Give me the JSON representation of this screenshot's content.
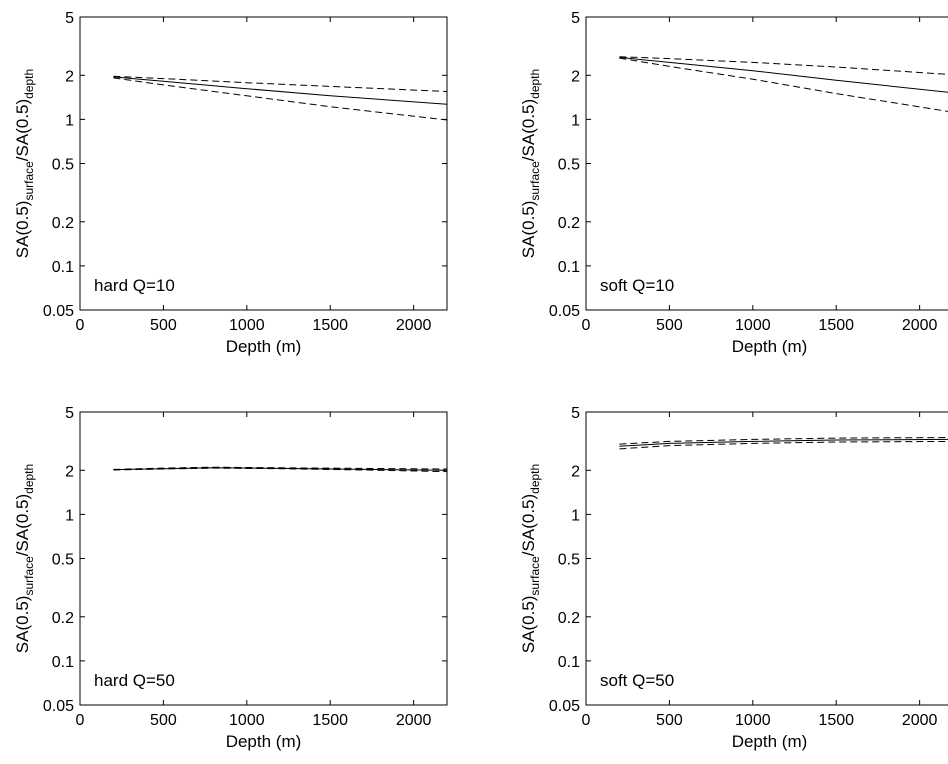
{
  "chart_data": [
    {
      "type": "line",
      "panel_label": "hard Q=10",
      "xlabel": "Depth (m)",
      "ylabel": {
        "main": "SA(0.5)",
        "surface": "surface",
        "sep": "/SA(0.5)",
        "depth": "depth"
      },
      "xlim": [
        0,
        2200
      ],
      "ylim": [
        0.05,
        5
      ],
      "yscale": "log",
      "xticks": [
        0,
        500,
        1000,
        1500,
        2000
      ],
      "xtick_labels": [
        "0",
        "500",
        "1000",
        "1500",
        "2000"
      ],
      "yticks": [
        0.05,
        0.1,
        0.2,
        0.5,
        1,
        2,
        5
      ],
      "ytick_labels": [
        "0.05",
        "0.1",
        "0.2",
        "0.5",
        "1",
        "2",
        "5"
      ],
      "grid": false,
      "series": [
        {
          "style": "solid",
          "x": [
            200,
            500,
            1000,
            1500,
            2200
          ],
          "y": [
            1.95,
            1.82,
            1.62,
            1.45,
            1.27
          ]
        },
        {
          "style": "dashed",
          "x": [
            200,
            500,
            1000,
            1500,
            2200
          ],
          "y": [
            1.97,
            1.9,
            1.78,
            1.68,
            1.55
          ]
        },
        {
          "style": "dashed",
          "x": [
            200,
            500,
            1000,
            1500,
            2200
          ],
          "y": [
            1.92,
            1.72,
            1.45,
            1.22,
            0.99
          ]
        }
      ]
    },
    {
      "type": "line",
      "panel_label": "soft Q=10",
      "xlabel": "Depth (m)",
      "ylabel": {
        "main": "SA(0.5)",
        "surface": "surface",
        "sep": "/SA(0.5)",
        "depth": "depth"
      },
      "xlim": [
        0,
        2200
      ],
      "ylim": [
        0.05,
        5
      ],
      "yscale": "log",
      "xticks": [
        0,
        500,
        1000,
        1500,
        2000
      ],
      "xtick_labels": [
        "0",
        "500",
        "1000",
        "1500",
        "2000"
      ],
      "yticks": [
        0.05,
        0.1,
        0.2,
        0.5,
        1,
        2,
        5
      ],
      "ytick_labels": [
        "0.05",
        "0.1",
        "0.2",
        "0.5",
        "1",
        "2",
        "5"
      ],
      "grid": false,
      "series": [
        {
          "style": "solid",
          "x": [
            200,
            500,
            1000,
            1500,
            2200
          ],
          "y": [
            2.65,
            2.45,
            2.15,
            1.85,
            1.52
          ]
        },
        {
          "style": "dashed",
          "x": [
            200,
            500,
            1000,
            1500,
            2200
          ],
          "y": [
            2.68,
            2.6,
            2.45,
            2.28,
            2.02
          ]
        },
        {
          "style": "dashed",
          "x": [
            200,
            500,
            1000,
            1500,
            2200
          ],
          "y": [
            2.62,
            2.3,
            1.88,
            1.5,
            1.12
          ]
        }
      ]
    },
    {
      "type": "line",
      "panel_label": "hard Q=50",
      "xlabel": "Depth (m)",
      "ylabel": {
        "main": "SA(0.5)",
        "surface": "surface",
        "sep": "/SA(0.5)",
        "depth": "depth"
      },
      "xlim": [
        0,
        2200
      ],
      "ylim": [
        0.05,
        5
      ],
      "yscale": "log",
      "xticks": [
        0,
        500,
        1000,
        1500,
        2000
      ],
      "xtick_labels": [
        "0",
        "500",
        "1000",
        "1500",
        "2000"
      ],
      "yticks": [
        0.05,
        0.1,
        0.2,
        0.5,
        1,
        2,
        5
      ],
      "ytick_labels": [
        "0.05",
        "0.1",
        "0.2",
        "0.5",
        "1",
        "2",
        "5"
      ],
      "grid": false,
      "series": [
        {
          "style": "solid",
          "x": [
            200,
            500,
            800,
            1200,
            1700,
            2200
          ],
          "y": [
            2.02,
            2.05,
            2.08,
            2.06,
            2.03,
            2.0
          ]
        },
        {
          "style": "dashed",
          "x": [
            200,
            500,
            800,
            1200,
            1700,
            2200
          ],
          "y": [
            2.03,
            2.07,
            2.1,
            2.08,
            2.06,
            2.04
          ]
        },
        {
          "style": "dashed",
          "x": [
            200,
            500,
            800,
            1200,
            1700,
            2200
          ],
          "y": [
            2.01,
            2.04,
            2.07,
            2.05,
            2.01,
            1.96
          ]
        }
      ]
    },
    {
      "type": "line",
      "panel_label": "soft Q=50",
      "xlabel": "Depth (m)",
      "ylabel": {
        "main": "SA(0.5)",
        "surface": "surface",
        "sep": "/SA(0.5)",
        "depth": "depth"
      },
      "xlim": [
        0,
        2200
      ],
      "ylim": [
        0.05,
        5
      ],
      "yscale": "log",
      "xticks": [
        0,
        500,
        1000,
        1500,
        2000
      ],
      "xtick_labels": [
        "0",
        "500",
        "1000",
        "1500",
        "2000"
      ],
      "yticks": [
        0.05,
        0.1,
        0.2,
        0.5,
        1,
        2,
        5
      ],
      "ytick_labels": [
        "0.05",
        "0.1",
        "0.2",
        "0.5",
        "1",
        "2",
        "5"
      ],
      "grid": false,
      "series": [
        {
          "style": "solid",
          "x": [
            200,
            500,
            1000,
            1500,
            2200
          ],
          "y": [
            2.92,
            3.05,
            3.15,
            3.22,
            3.25
          ]
        },
        {
          "style": "dashed",
          "x": [
            200,
            500,
            1000,
            1500,
            2200
          ],
          "y": [
            3.02,
            3.15,
            3.25,
            3.32,
            3.35
          ]
        },
        {
          "style": "dashed",
          "x": [
            200,
            500,
            1000,
            1500,
            2200
          ],
          "y": [
            2.8,
            2.95,
            3.05,
            3.12,
            3.15
          ]
        }
      ]
    }
  ]
}
